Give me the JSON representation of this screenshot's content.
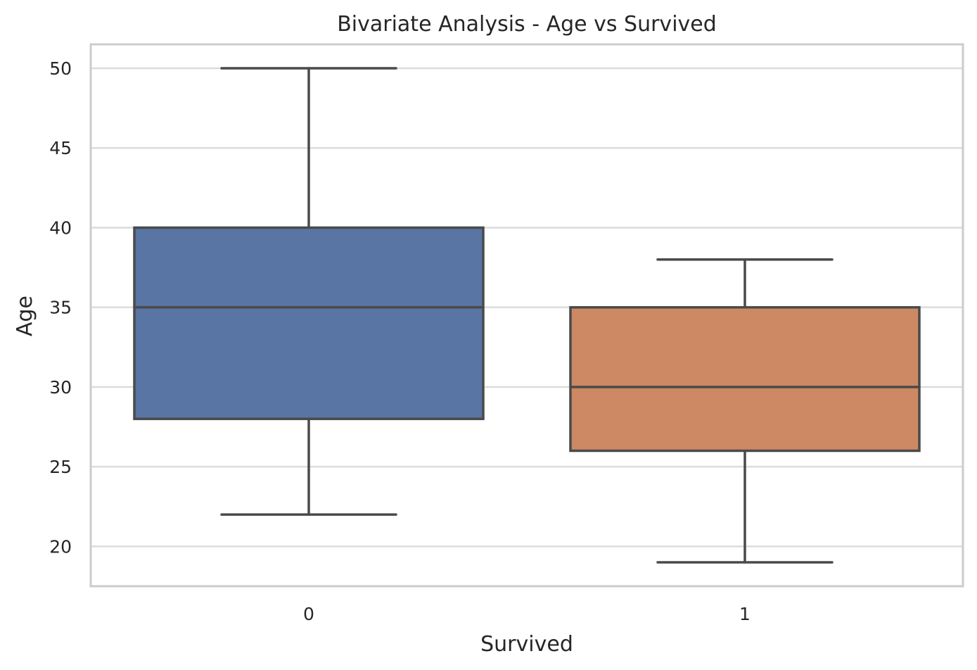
{
  "chart_data": {
    "type": "box",
    "title": "Bivariate Analysis - Age vs Survived",
    "xlabel": "Survived",
    "ylabel": "Age",
    "categories": [
      "0",
      "1"
    ],
    "ylim": [
      17.5,
      51.5
    ],
    "yticks": [
      20,
      25,
      30,
      35,
      40,
      45,
      50
    ],
    "grid": "horizontal",
    "boxes": [
      {
        "category": "0",
        "whisker_low": 22,
        "q1": 28,
        "median": 35,
        "q3": 40,
        "whisker_high": 50,
        "color": "#5875a4"
      },
      {
        "category": "1",
        "whisker_low": 19,
        "q1": 26,
        "median": 30,
        "q3": 35,
        "whisker_high": 38,
        "color": "#cc8963"
      }
    ]
  }
}
